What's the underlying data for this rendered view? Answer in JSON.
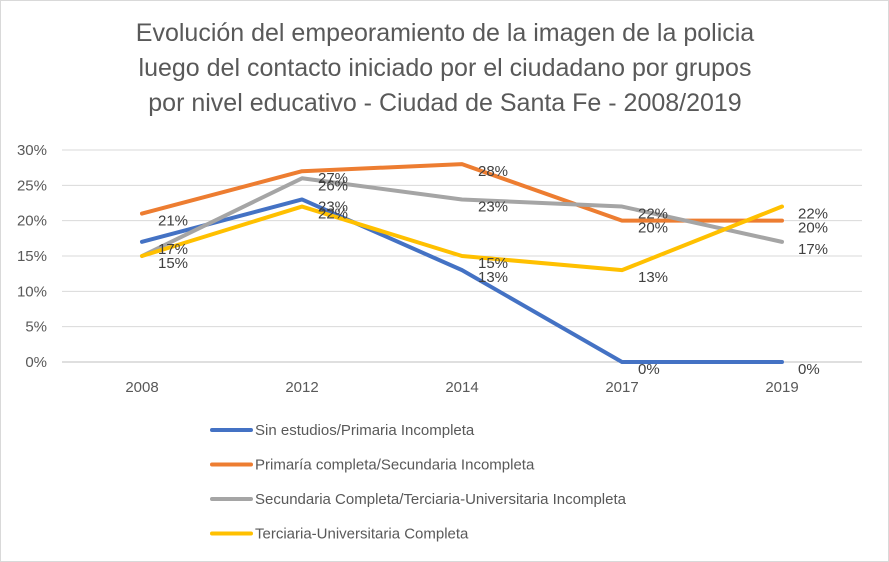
{
  "chart_data": {
    "type": "line",
    "title_lines": [
      "Evolución del empeoramiento de la imagen de la policia",
      "luego del contacto iniciado por el ciudadano por grupos",
      "por nivel educativo - Ciudad de Santa Fe  - 2008/2019"
    ],
    "categories": [
      "2008",
      "2012",
      "2014",
      "2017",
      "2019"
    ],
    "ylim": [
      0,
      30
    ],
    "y_ticks": [
      0,
      5,
      10,
      15,
      20,
      25,
      30
    ],
    "y_tick_labels": [
      "0%",
      "5%",
      "10%",
      "15%",
      "20%",
      "25%",
      "30%"
    ],
    "grid": true,
    "legend_position": "bottom",
    "series": [
      {
        "name": "Sin estudios/Primaria Incompleta",
        "color": "#4472C4",
        "values": [
          17,
          23,
          13,
          0,
          0
        ],
        "labels": [
          "17%",
          "23%",
          "13%",
          "0%",
          "0%"
        ]
      },
      {
        "name": "Primaría completa/Secundaria Incompleta",
        "color": "#ED7D31",
        "values": [
          21,
          27,
          28,
          20,
          20
        ],
        "labels": [
          "21%",
          "27%",
          "28%",
          "20%",
          "20%"
        ]
      },
      {
        "name": "Secundaria Completa/Terciaria-Universitaria Incompleta",
        "color": "#A5A5A5",
        "values": [
          15,
          26,
          23,
          22,
          17
        ],
        "labels": [
          "",
          "26%",
          "23%",
          "22%",
          "17%"
        ]
      },
      {
        "name": "Terciaria-Universitaria Completa",
        "color": "#FFC000",
        "values": [
          15,
          22,
          15,
          13,
          22
        ],
        "labels": [
          "15%",
          "22%",
          "15%",
          "13%",
          "22%"
        ]
      }
    ]
  }
}
